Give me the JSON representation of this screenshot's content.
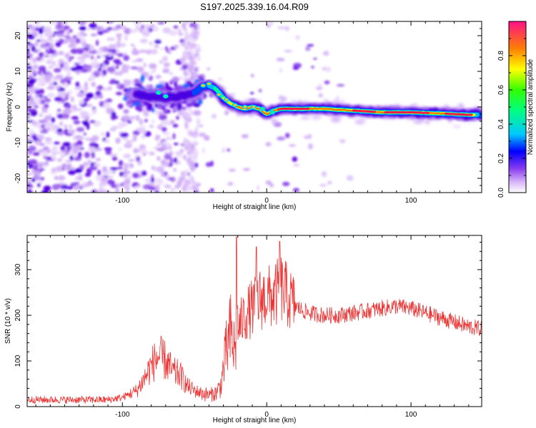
{
  "title": "S197.2025.339.16.04.R09",
  "chart_data": [
    {
      "type": "heatmap",
      "name": "spectrogram",
      "xlabel": "Height of straight line (km)",
      "ylabel": "Frequency (Hz)",
      "xlim": [
        -166,
        149
      ],
      "ylim": [
        -24,
        24
      ],
      "xticks": [
        -100,
        0,
        100
      ],
      "yticks": [
        -20,
        -10,
        0,
        10,
        20
      ],
      "ridge": {
        "x": [
          -90,
          -80,
          -70,
          -60,
          -50,
          -45,
          -40,
          -35,
          -30,
          -25,
          -20,
          -15,
          -10,
          -5,
          0,
          5,
          10,
          20,
          40,
          60,
          80,
          100,
          120,
          140,
          149
        ],
        "y": [
          3.5,
          3.0,
          2.5,
          3.0,
          4.0,
          5.5,
          6.0,
          5.0,
          2.5,
          1.0,
          0.0,
          -0.5,
          0.0,
          -0.5,
          -2.0,
          -1.0,
          -0.5,
          -0.5,
          -0.5,
          -1.0,
          -1.5,
          -1.5,
          -1.8,
          -2.2,
          -2.2
        ]
      },
      "colorbar": {
        "label": "Normalized spectral amplitude",
        "ticks": [
          "0.0",
          "0.2",
          "0.4",
          "0.6",
          "0.8"
        ],
        "range": [
          0,
          1
        ]
      }
    },
    {
      "type": "line",
      "name": "snr",
      "xlabel": "Height of straight line (km)",
      "ylabel": "SNR (10 * v/v)",
      "xlim": [
        -166,
        149
      ],
      "ylim": [
        0,
        375
      ],
      "xticks": [
        -100,
        0,
        100
      ],
      "yticks": [
        0,
        100,
        200,
        300
      ],
      "color": "#ee3333",
      "series": [
        {
          "name": "SNR",
          "x": [
            -166,
            -150,
            -130,
            -110,
            -100,
            -90,
            -85,
            -80,
            -75,
            -70,
            -65,
            -60,
            -55,
            -50,
            -45,
            -40,
            -35,
            -32,
            -28,
            -25,
            -22,
            -20,
            -15,
            -10,
            -5,
            0,
            5,
            10,
            15,
            20,
            25,
            30,
            40,
            50,
            60,
            70,
            80,
            90,
            100,
            110,
            120,
            130,
            140,
            149
          ],
          "y": [
            15,
            15,
            15,
            15,
            20,
            35,
            60,
            90,
            110,
            100,
            75,
            70,
            45,
            35,
            30,
            25,
            30,
            45,
            120,
            160,
            120,
            170,
            200,
            215,
            235,
            240,
            240,
            260,
            240,
            220,
            210,
            205,
            200,
            200,
            205,
            210,
            215,
            220,
            215,
            205,
            195,
            185,
            175,
            170
          ]
        }
      ]
    }
  ]
}
